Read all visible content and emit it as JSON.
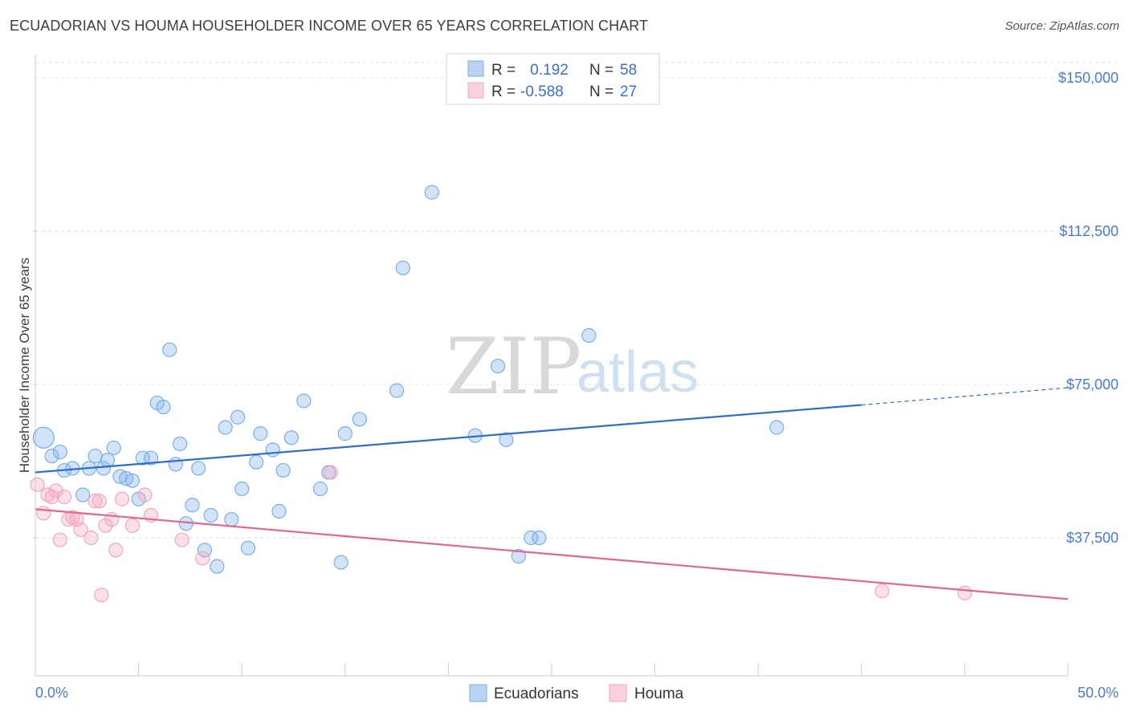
{
  "title": "ECUADORIAN VS HOUMA HOUSEHOLDER INCOME OVER 65 YEARS CORRELATION CHART",
  "source": "Source: ZipAtlas.com",
  "watermark": {
    "zip": "ZIP",
    "atlas": "atlas"
  },
  "chart_data": {
    "type": "scatter",
    "ylabel": "Householder Income Over 65 years",
    "xlim": [
      0,
      50
    ],
    "ylim": [
      0,
      155000
    ],
    "x_tick_labels": [
      {
        "x": 0,
        "label": "0.0%"
      },
      {
        "x": 50,
        "label": "50.0%"
      }
    ],
    "y_ticks": [
      {
        "y": 37500,
        "label": "$37,500"
      },
      {
        "y": 75000,
        "label": "$75,000"
      },
      {
        "y": 112500,
        "label": "$112,500"
      },
      {
        "y": 150000,
        "label": "$150,000"
      }
    ],
    "grid": true,
    "legend_top": [
      {
        "r_label": "R =",
        "r_value": " 0.192",
        "n_label": "N =",
        "n_value": "58"
      },
      {
        "r_label": "R =",
        "r_value": "-0.588",
        "n_label": "N =",
        "n_value": "27"
      }
    ],
    "series": [
      {
        "name": "Ecuadorians",
        "color": "#7aaee8",
        "line_color": "#2f6fcb",
        "trend": {
          "x0": 0,
          "y0": 53500,
          "x1": 40,
          "y1": 70000,
          "dash_to_x": 50,
          "dash_to_y": 74200
        },
        "points": [
          {
            "x": 0.4,
            "y": 62000,
            "big": true
          },
          {
            "x": 0.8,
            "y": 57500
          },
          {
            "x": 1.2,
            "y": 58500
          },
          {
            "x": 1.4,
            "y": 54000
          },
          {
            "x": 1.8,
            "y": 54500
          },
          {
            "x": 2.3,
            "y": 48000
          },
          {
            "x": 2.6,
            "y": 54500
          },
          {
            "x": 2.9,
            "y": 57500
          },
          {
            "x": 3.3,
            "y": 54500
          },
          {
            "x": 3.5,
            "y": 56500
          },
          {
            "x": 3.8,
            "y": 59500
          },
          {
            "x": 4.1,
            "y": 52500
          },
          {
            "x": 4.4,
            "y": 52000
          },
          {
            "x": 4.7,
            "y": 51500
          },
          {
            "x": 5.0,
            "y": 47000
          },
          {
            "x": 5.2,
            "y": 57000
          },
          {
            "x": 5.6,
            "y": 57000
          },
          {
            "x": 5.9,
            "y": 70500
          },
          {
            "x": 6.2,
            "y": 69500
          },
          {
            "x": 6.5,
            "y": 83500
          },
          {
            "x": 6.8,
            "y": 55500
          },
          {
            "x": 7.0,
            "y": 60500
          },
          {
            "x": 7.3,
            "y": 41000
          },
          {
            "x": 7.6,
            "y": 45500
          },
          {
            "x": 7.9,
            "y": 54500
          },
          {
            "x": 8.2,
            "y": 34500
          },
          {
            "x": 8.5,
            "y": 43000
          },
          {
            "x": 8.8,
            "y": 30500
          },
          {
            "x": 9.2,
            "y": 64500
          },
          {
            "x": 9.5,
            "y": 42000
          },
          {
            "x": 9.8,
            "y": 67000
          },
          {
            "x": 10.0,
            "y": 49500
          },
          {
            "x": 10.3,
            "y": 35000
          },
          {
            "x": 10.7,
            "y": 56000
          },
          {
            "x": 10.9,
            "y": 63000
          },
          {
            "x": 11.5,
            "y": 59000
          },
          {
            "x": 11.8,
            "y": 44000
          },
          {
            "x": 12.0,
            "y": 54000
          },
          {
            "x": 12.4,
            "y": 62000
          },
          {
            "x": 13.0,
            "y": 71000
          },
          {
            "x": 13.8,
            "y": 49500
          },
          {
            "x": 14.2,
            "y": 53500
          },
          {
            "x": 14.8,
            "y": 31500
          },
          {
            "x": 15.0,
            "y": 63000
          },
          {
            "x": 15.7,
            "y": 66500
          },
          {
            "x": 17.5,
            "y": 73500
          },
          {
            "x": 17.8,
            "y": 103500
          },
          {
            "x": 19.2,
            "y": 122000
          },
          {
            "x": 21.3,
            "y": 62500
          },
          {
            "x": 22.4,
            "y": 79500
          },
          {
            "x": 22.8,
            "y": 61500
          },
          {
            "x": 23.4,
            "y": 33000
          },
          {
            "x": 24.0,
            "y": 37500
          },
          {
            "x": 24.4,
            "y": 37500
          },
          {
            "x": 26.8,
            "y": 87000
          },
          {
            "x": 35.9,
            "y": 64500
          }
        ]
      },
      {
        "name": "Houma",
        "color": "#f2a7bf",
        "line_color": "#e2668f",
        "trend": {
          "x0": 0,
          "y0": 44500,
          "x1": 50,
          "y1": 22500
        },
        "points": [
          {
            "x": 0.1,
            "y": 50500
          },
          {
            "x": 0.4,
            "y": 43500
          },
          {
            "x": 0.6,
            "y": 48000
          },
          {
            "x": 0.8,
            "y": 47500
          },
          {
            "x": 1.0,
            "y": 49000
          },
          {
            "x": 1.2,
            "y": 37000
          },
          {
            "x": 1.4,
            "y": 47500
          },
          {
            "x": 1.6,
            "y": 42000
          },
          {
            "x": 1.8,
            "y": 42500
          },
          {
            "x": 2.0,
            "y": 42000
          },
          {
            "x": 2.2,
            "y": 39500
          },
          {
            "x": 2.7,
            "y": 37500
          },
          {
            "x": 2.9,
            "y": 46500
          },
          {
            "x": 3.1,
            "y": 46500
          },
          {
            "x": 3.2,
            "y": 23500
          },
          {
            "x": 3.4,
            "y": 40500
          },
          {
            "x": 3.7,
            "y": 42000
          },
          {
            "x": 3.9,
            "y": 34500
          },
          {
            "x": 4.2,
            "y": 47000
          },
          {
            "x": 4.7,
            "y": 40500
          },
          {
            "x": 5.3,
            "y": 48000
          },
          {
            "x": 5.6,
            "y": 43000
          },
          {
            "x": 7.1,
            "y": 37000
          },
          {
            "x": 8.1,
            "y": 32500
          },
          {
            "x": 14.3,
            "y": 53500
          },
          {
            "x": 41.0,
            "y": 24500
          },
          {
            "x": 45.0,
            "y": 24000
          }
        ]
      }
    ]
  }
}
